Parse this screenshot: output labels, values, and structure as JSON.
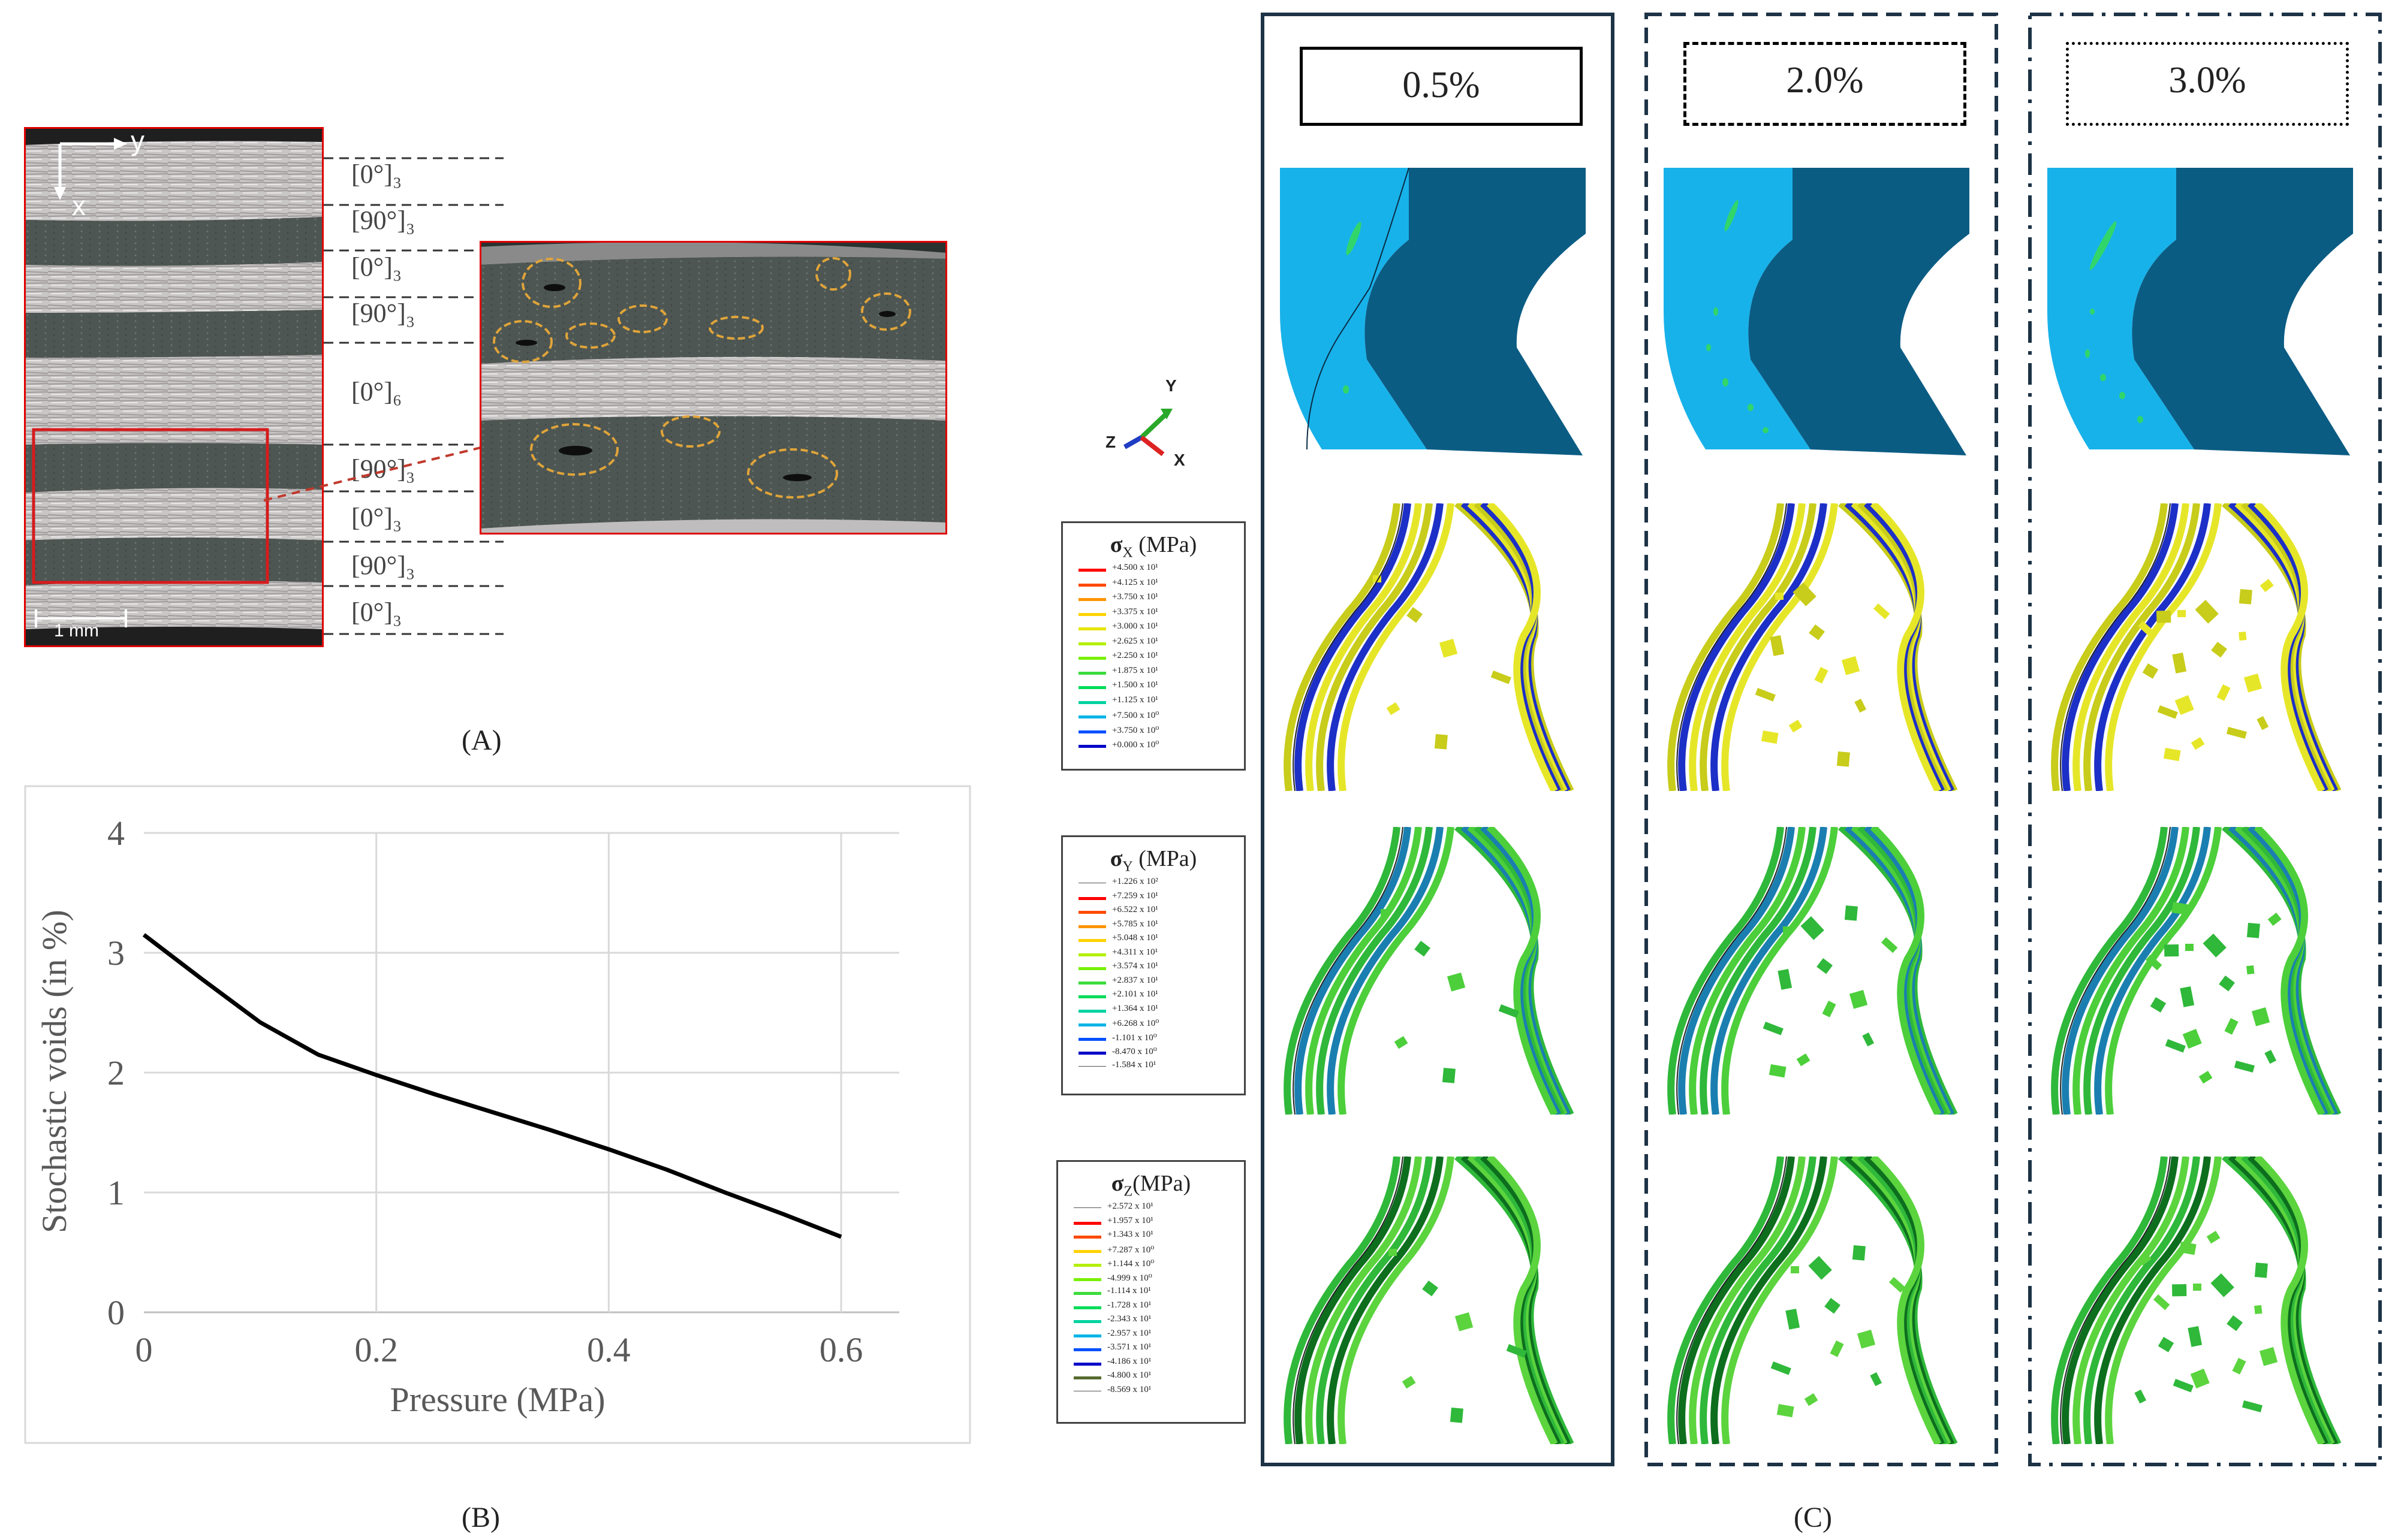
{
  "panel_a": {
    "label": "(A)",
    "axis_y": "y",
    "axis_x": "x",
    "scale_bar": "1 mm",
    "ply_labels": [
      "[0°]₃",
      "[90°]₃",
      "[0°]₃",
      "[90°]₃",
      "[0°]₆",
      "[90°]₃",
      "[0°]₃",
      "[90°]₃",
      "[0°]₃"
    ]
  },
  "panel_b": {
    "label": "(B)"
  },
  "panel_c": {
    "label": "(C)",
    "axis_triad": {
      "y": "Y",
      "z": "Z",
      "x": "X"
    },
    "columns": [
      {
        "void_label": "0.5%"
      },
      {
        "void_label": "2.0%"
      },
      {
        "void_label": "3.0%"
      }
    ],
    "legends": [
      {
        "symbol": "σ",
        "sub": "X",
        "unit": "(MPa)",
        "values": [
          "+4.500 x 10¹",
          "+4.125 x 10¹",
          "+3.750 x 10¹",
          "+3.375 x 10¹",
          "+3.000 x 10¹",
          "+2.625 x 10¹",
          "+2.250 x 10¹",
          "+1.875 x 10¹",
          "+1.500 x 10¹",
          "+1.125 x 10¹",
          "+7.500 x 10⁰",
          "+3.750 x 10⁰",
          "+0.000 x 10⁰"
        ]
      },
      {
        "symbol": "σ",
        "sub": "Y",
        "unit": "(MPa)",
        "values": [
          "+1.226 x 10²",
          "+7.259 x 10¹",
          "+6.522 x 10¹",
          "+5.785 x 10¹",
          "+5.048 x 10¹",
          "+4.311 x 10¹",
          "+3.574 x 10¹",
          "+2.837 x 10¹",
          "+2.101 x 10¹",
          "+1.364 x 10¹",
          "+6.268 x 10⁰",
          "-1.101 x 10⁰",
          "-8.470 x 10⁰",
          "-1.584 x 10¹"
        ]
      },
      {
        "symbol": "σ",
        "sub": "Z",
        "unit": "(MPa)",
        "values": [
          "+2.572 x 10¹",
          "+1.957 x 10¹",
          "+1.343 x 10¹",
          "+7.287 x 10⁰",
          "+1.144 x 10⁰",
          "-4.999 x 10⁰",
          "-1.114 x 10¹",
          "-1.728 x 10¹",
          "-2.343 x 10¹",
          "-2.957 x 10¹",
          "-3.571 x 10¹",
          "-4.186 x 10¹",
          "-4.800 x 10¹",
          "-8.569 x 10¹"
        ]
      }
    ]
  },
  "chart_data": {
    "type": "line",
    "xlabel": "Pressure (MPa)",
    "ylabel": "Stochastic voids (in %)",
    "xlim": [
      0,
      0.65
    ],
    "ylim": [
      0,
      4
    ],
    "xticks": [
      "0",
      "0.2",
      "0.4",
      "0.6"
    ],
    "yticks": [
      "0",
      "1",
      "2",
      "3",
      "4"
    ],
    "grid": true,
    "series": [
      {
        "name": "voids",
        "x": [
          0,
          0.05,
          0.1,
          0.15,
          0.2,
          0.25,
          0.3,
          0.35,
          0.4,
          0.45,
          0.5,
          0.55,
          0.6
        ],
        "y": [
          3.15,
          2.78,
          2.42,
          2.15,
          1.98,
          1.82,
          1.67,
          1.52,
          1.36,
          1.19,
          1.0,
          0.82,
          0.63
        ]
      }
    ]
  }
}
